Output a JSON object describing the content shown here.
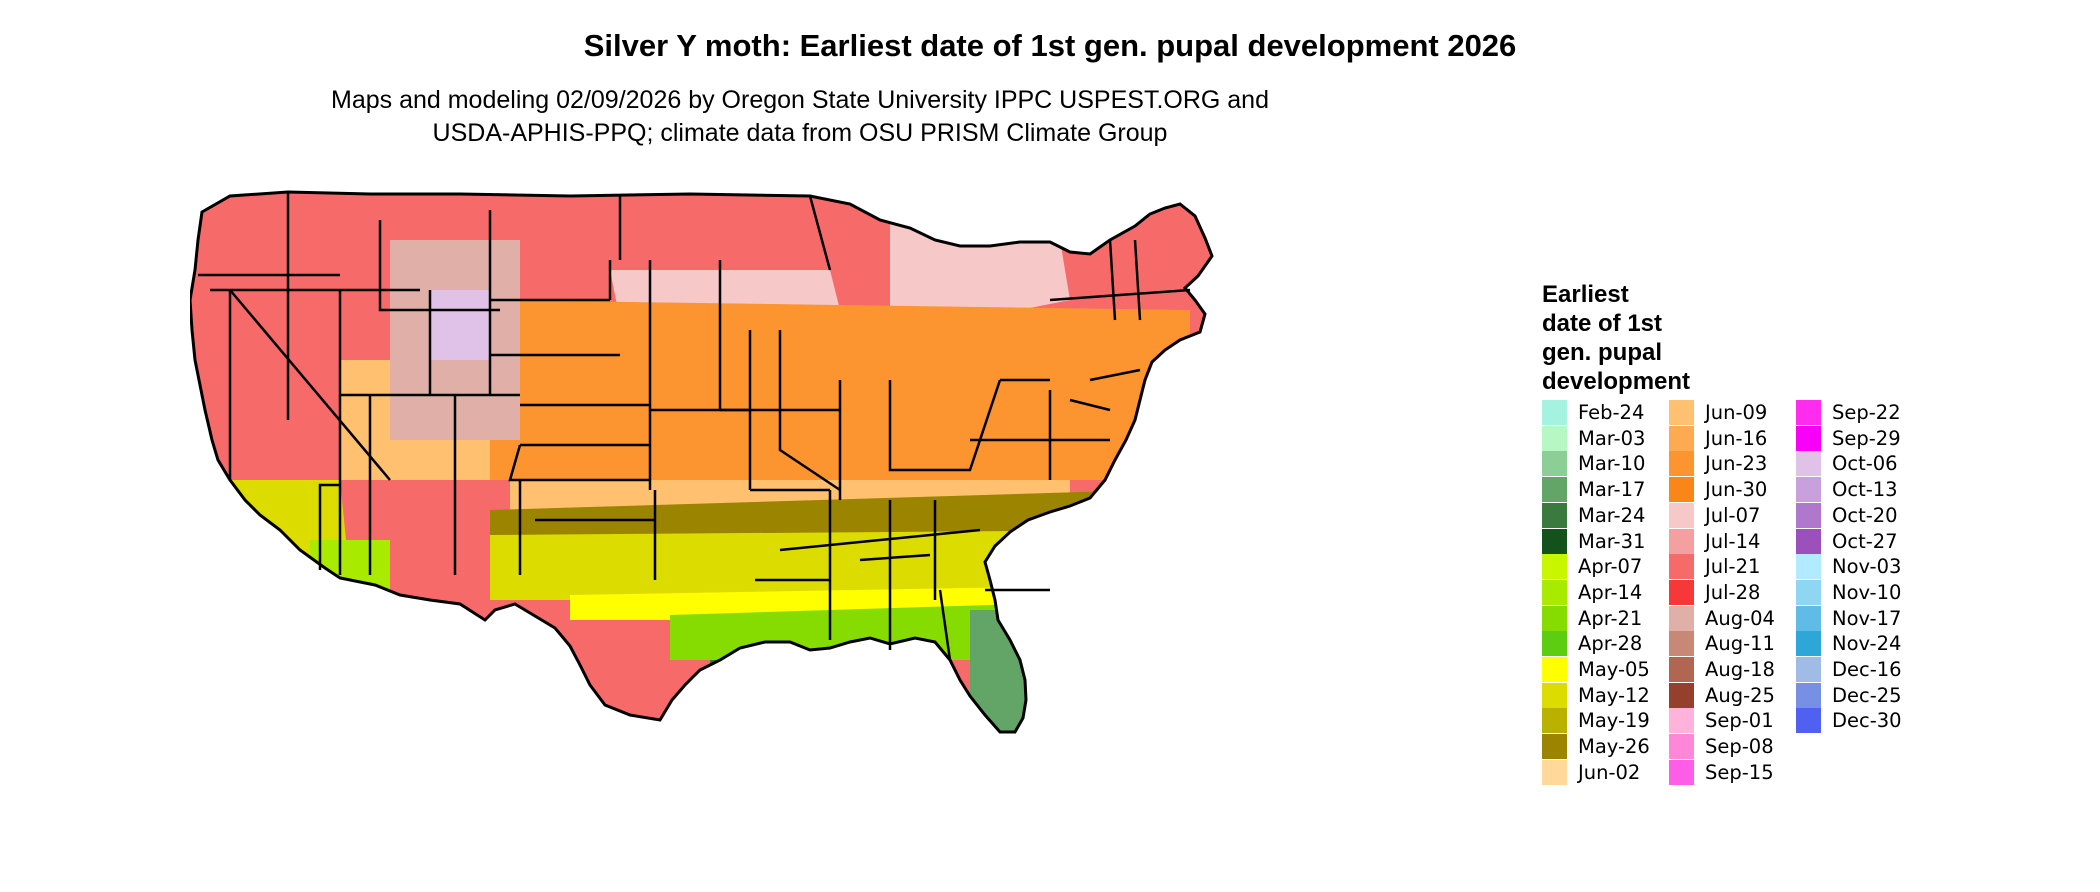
{
  "map": {
    "title": "Silver Y moth: Earliest date of 1st gen. pupal development 2026",
    "subtitle_line1": "Maps and modeling 02/09/2026 by Oregon State University IPPC USPEST.ORG and",
    "subtitle_line2": "USDA-APHIS-PPQ; climate data from OSU PRISM Climate Group",
    "region": "contiguous United States",
    "legend": {
      "title_lines": [
        "Earliest",
        "date of 1st",
        "gen. pupal",
        "development"
      ],
      "items": [
        {
          "label": "Feb-24",
          "color": "#a6f2e1"
        },
        {
          "label": "Mar-03",
          "color": "#b6f7c3"
        },
        {
          "label": "Mar-10",
          "color": "#8ccf96"
        },
        {
          "label": "Mar-17",
          "color": "#62a567"
        },
        {
          "label": "Mar-24",
          "color": "#3a7a3f"
        },
        {
          "label": "Mar-31",
          "color": "#14521c"
        },
        {
          "label": "Apr-07",
          "color": "#c8f500"
        },
        {
          "label": "Apr-14",
          "color": "#a8ea00"
        },
        {
          "label": "Apr-21",
          "color": "#86dc00"
        },
        {
          "label": "Apr-28",
          "color": "#5ccd10"
        },
        {
          "label": "May-05",
          "color": "#ffff00"
        },
        {
          "label": "May-12",
          "color": "#dcdc00"
        },
        {
          "label": "May-19",
          "color": "#bab000"
        },
        {
          "label": "May-26",
          "color": "#9a8400"
        },
        {
          "label": "Jun-02",
          "color": "#ffd89a"
        },
        {
          "label": "Jun-09",
          "color": "#ffc070"
        },
        {
          "label": "Jun-16",
          "color": "#fdaa50"
        },
        {
          "label": "Jun-23",
          "color": "#fc9430"
        },
        {
          "label": "Jun-30",
          "color": "#fa8618"
        },
        {
          "label": "Jul-07",
          "color": "#f7c8c8"
        },
        {
          "label": "Jul-14",
          "color": "#f5a0a0"
        },
        {
          "label": "Jul-21",
          "color": "#f76a6a"
        },
        {
          "label": "Jul-28",
          "color": "#f73838"
        },
        {
          "label": "Aug-04",
          "color": "#e0b0a8"
        },
        {
          "label": "Aug-11",
          "color": "#c88878"
        },
        {
          "label": "Aug-18",
          "color": "#b06650"
        },
        {
          "label": "Aug-25",
          "color": "#94402c"
        },
        {
          "label": "Sep-01",
          "color": "#ffb2dc"
        },
        {
          "label": "Sep-08",
          "color": "#ff86d8"
        },
        {
          "label": "Sep-15",
          "color": "#ff5ce8"
        },
        {
          "label": "Sep-22",
          "color": "#ff2cf0"
        },
        {
          "label": "Sep-29",
          "color": "#f800f8"
        },
        {
          "label": "Oct-06",
          "color": "#e0c2e8"
        },
        {
          "label": "Oct-13",
          "color": "#c8a0dc"
        },
        {
          "label": "Oct-20",
          "color": "#b078cc"
        },
        {
          "label": "Oct-27",
          "color": "#9c50bc"
        },
        {
          "label": "Nov-03",
          "color": "#b2eaff"
        },
        {
          "label": "Nov-10",
          "color": "#8ed6f2"
        },
        {
          "label": "Nov-17",
          "color": "#60bce6"
        },
        {
          "label": "Nov-24",
          "color": "#2ea6d8"
        },
        {
          "label": "Dec-16",
          "color": "#a0bce6"
        },
        {
          "label": "Dec-25",
          "color": "#7890e4"
        },
        {
          "label": "Dec-30",
          "color": "#5060f0"
        }
      ]
    }
  }
}
